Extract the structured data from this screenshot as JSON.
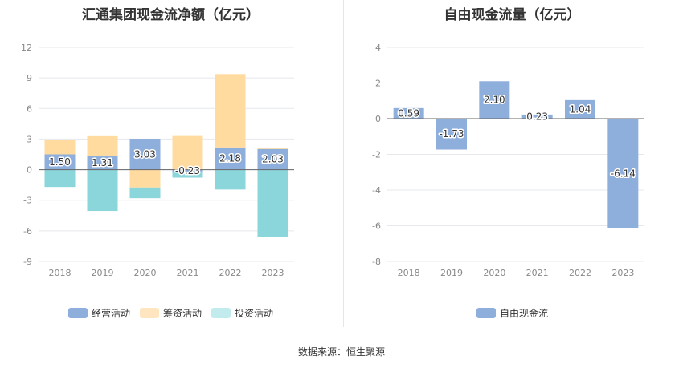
{
  "chart_data": [
    {
      "type": "bar",
      "stacked": true,
      "title": "汇通集团现金流净额（亿元）",
      "categories": [
        "2018",
        "2019",
        "2020",
        "2021",
        "2022",
        "2023"
      ],
      "ylim": [
        -9,
        12
      ],
      "yticks": [
        "12",
        "9",
        "6",
        "3",
        "0",
        "-3",
        "-6",
        "-9"
      ],
      "grid": true,
      "legend_position": "bottom",
      "series": [
        {
          "name": "经营活动",
          "color": "#8eaedc",
          "values": [
            1.5,
            1.31,
            3.03,
            -0.23,
            2.18,
            2.03
          ],
          "labels": [
            "1.50",
            "1.31",
            "3.03",
            "-0.23",
            "2.18",
            "2.03"
          ]
        },
        {
          "name": "筹资活动",
          "color": "#ffdba0",
          "values": [
            1.45,
            1.97,
            -1.75,
            3.3,
            7.2,
            0.12
          ]
        },
        {
          "name": "投资活动",
          "color": "#8bd6da",
          "values": [
            -1.7,
            -4.05,
            -1.05,
            -0.55,
            -1.95,
            -6.6
          ]
        }
      ]
    },
    {
      "type": "bar",
      "title": "自由现金流量（亿元）",
      "categories": [
        "2018",
        "2019",
        "2020",
        "2021",
        "2022",
        "2023"
      ],
      "ylim": [
        -8,
        4
      ],
      "yticks": [
        "4",
        "2",
        "0",
        "-2",
        "-4",
        "-6",
        "-8"
      ],
      "grid": true,
      "legend_position": "bottom",
      "series": [
        {
          "name": "自由现金流",
          "color": "#8eaedc",
          "values": [
            0.59,
            -1.73,
            2.1,
            0.23,
            1.04,
            -6.14
          ],
          "labels": [
            "0.59",
            "-1.73",
            "2.10",
            "0.23",
            "1.04",
            "-6.14"
          ]
        }
      ]
    }
  ],
  "legend_left": [
    {
      "label": "经营活动",
      "color": "#8eaedc"
    },
    {
      "label": "筹资活动",
      "color": "#ffe6c0"
    },
    {
      "label": "投资活动",
      "color": "#c2ebee"
    }
  ],
  "legend_right": [
    {
      "label": "自由现金流",
      "color": "#8eaedc"
    }
  ],
  "source": "数据来源：恒生聚源"
}
